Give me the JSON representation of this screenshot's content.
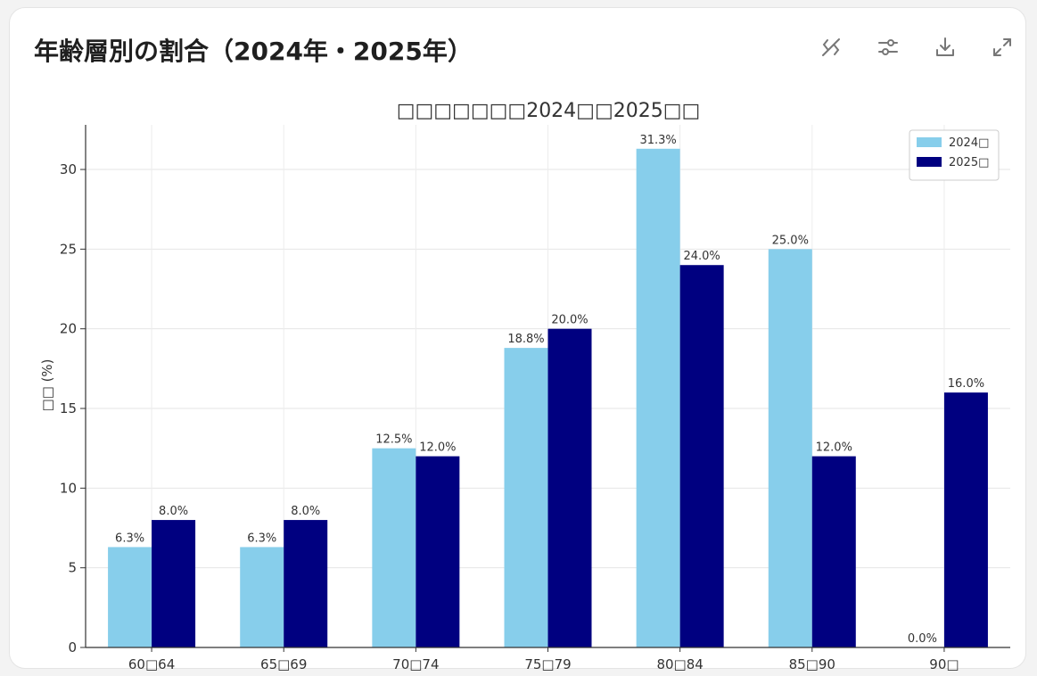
{
  "header": {
    "title": "年齢層別の割合（2024年・2025年）"
  },
  "toolbar": {
    "icons": [
      "hide-code-icon",
      "settings-sliders-icon",
      "download-icon",
      "expand-icon"
    ]
  },
  "chart_data": {
    "type": "bar",
    "title": "□□□□□□□2024□□2025□□",
    "ylabel": "□□ (%)",
    "xlabel": "",
    "categories": [
      "60□64",
      "65□69",
      "70□74",
      "75□79",
      "80□84",
      "85□90",
      "90□"
    ],
    "series": [
      {
        "name": "2024□",
        "color": "#87ceeb",
        "values": [
          6.3,
          6.3,
          12.5,
          18.8,
          31.3,
          25.0,
          0.0
        ]
      },
      {
        "name": "2025□",
        "color": "#000080",
        "values": [
          8.0,
          8.0,
          12.0,
          20.0,
          24.0,
          12.0,
          16.0
        ]
      }
    ],
    "value_labels": [
      [
        "6.3%",
        "6.3%",
        "12.5%",
        "18.8%",
        "31.3%",
        "25.0%",
        "0.0%"
      ],
      [
        "8.0%",
        "8.0%",
        "12.0%",
        "20.0%",
        "24.0%",
        "12.0%",
        "16.0%"
      ]
    ],
    "ylim": [
      0,
      32.8
    ],
    "yticks": [
      0,
      5,
      10,
      15,
      20,
      25,
      30
    ],
    "grid": true,
    "legend_position": "top-right"
  }
}
